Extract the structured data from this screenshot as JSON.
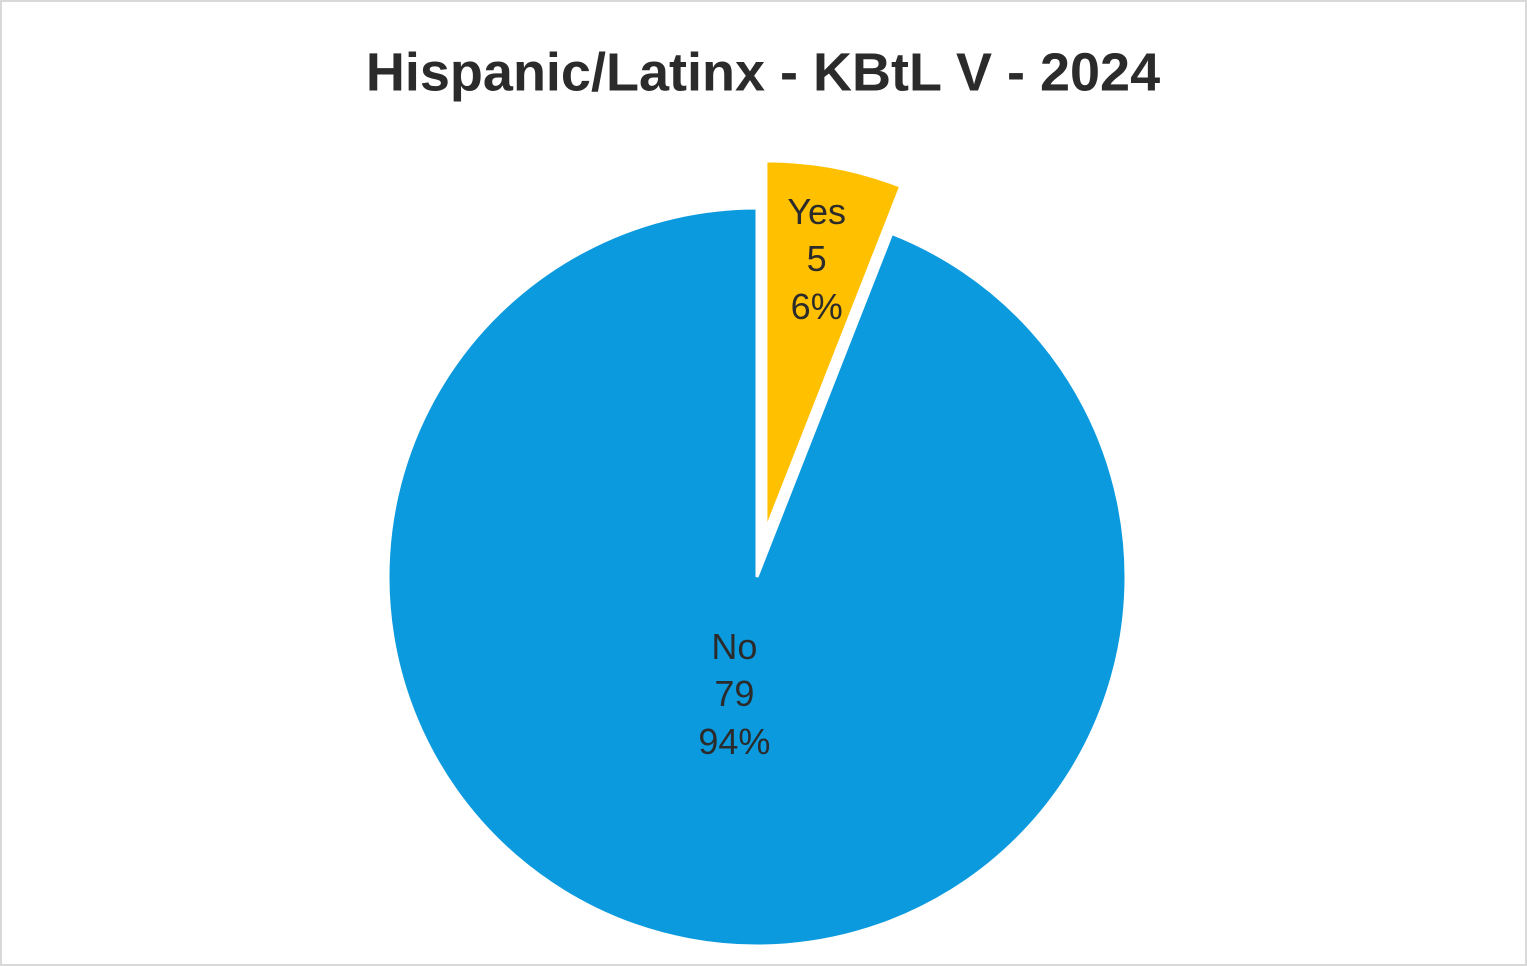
{
  "chart_data": {
    "type": "pie",
    "title": "Hispanic/Latinx - KBtL V - 2024",
    "categories": [
      "Yes",
      "No"
    ],
    "values": [
      5,
      79
    ],
    "percent_labels": [
      "6%",
      "94%"
    ],
    "colors": [
      "#ffc000",
      "#0b9ade"
    ],
    "exploded": [
      true,
      false
    ]
  }
}
